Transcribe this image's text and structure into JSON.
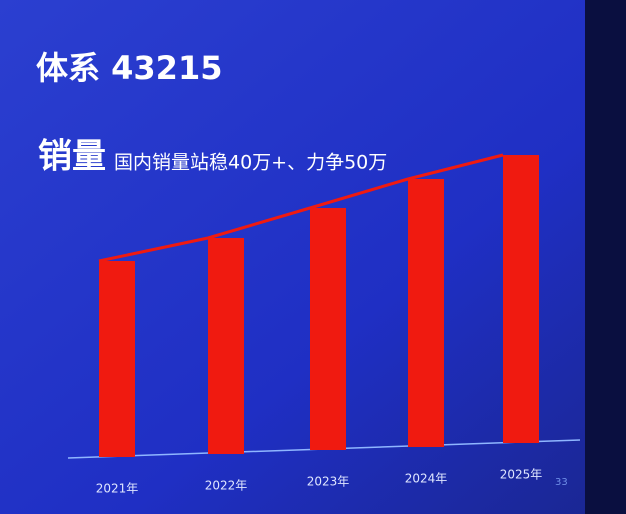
{
  "slide": {
    "title": "体系 43215",
    "heading": "销量",
    "subheading": "国内销量站稳40万+、力争50万",
    "page_number": "33"
  },
  "chart_data": {
    "type": "bar",
    "categories": [
      "2021年",
      "2022年",
      "2023年",
      "2024年",
      "2025年"
    ],
    "values": [
      196,
      216,
      242,
      268,
      288
    ],
    "color": "#f01a10",
    "trend_line": true
  }
}
